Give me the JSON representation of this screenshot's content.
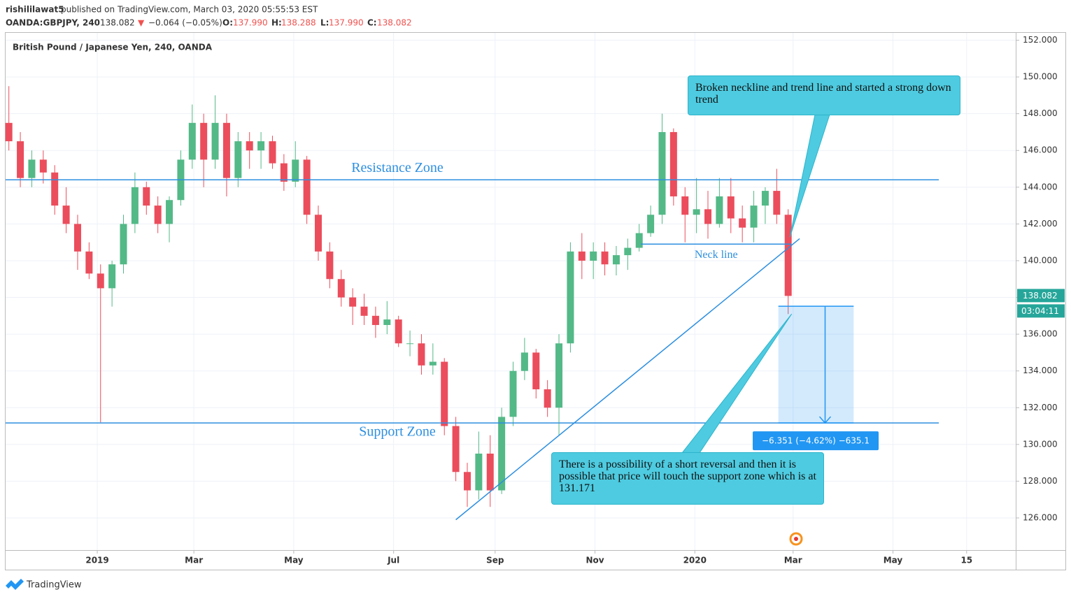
{
  "header": {
    "publisher": "rishililawat5",
    "published": "published on TradingView.com, March 03, 2020 05:55:53 EST",
    "symbol": "OANDA:GBPJPY, 240",
    "price": "138.082",
    "arrow": "▼",
    "change": "−0.064 (−0.05%)",
    "o_label": "O:",
    "o": "137.990",
    "h_label": "H:",
    "h": "138.288",
    "l_label": "L:",
    "l": "137.990",
    "c_label": "C:",
    "c": "138.082"
  },
  "chart_data": {
    "type": "candlestick",
    "title": "British Pound / Japanese Yen, 240, OANDA",
    "x": [
      "2018-11-08",
      "2018-11-15",
      "2018-11-22",
      "2018-11-29",
      "2018-12-06",
      "2018-12-13",
      "2018-12-20",
      "2018-12-27",
      "2019-01-03",
      "2019-01-10",
      "2019-01-17",
      "2019-01-24",
      "2019-01-31",
      "2019-02-07",
      "2019-02-14",
      "2019-02-21",
      "2019-02-28",
      "2019-03-07",
      "2019-03-14",
      "2019-03-21",
      "2019-03-28",
      "2019-04-04",
      "2019-04-11",
      "2019-04-18",
      "2019-04-25",
      "2019-05-02",
      "2019-05-09",
      "2019-05-16",
      "2019-05-23",
      "2019-05-30",
      "2019-06-06",
      "2019-06-13",
      "2019-06-20",
      "2019-06-27",
      "2019-07-04",
      "2019-07-11",
      "2019-07-18",
      "2019-07-25",
      "2019-08-01",
      "2019-08-08",
      "2019-08-15",
      "2019-08-22",
      "2019-08-29",
      "2019-09-05",
      "2019-09-12",
      "2019-09-19",
      "2019-09-26",
      "2019-10-03",
      "2019-10-10",
      "2019-10-17",
      "2019-10-24",
      "2019-10-31",
      "2019-11-07",
      "2019-11-14",
      "2019-11-21",
      "2019-11-28",
      "2019-12-05",
      "2019-12-12",
      "2019-12-19",
      "2019-12-26",
      "2020-01-02",
      "2020-01-09",
      "2020-01-16",
      "2020-01-23",
      "2020-01-30",
      "2020-02-06",
      "2020-02-13",
      "2020-02-20",
      "2020-02-27"
    ],
    "open": [
      147.5,
      146.5,
      144.5,
      145.5,
      144.8,
      143,
      142,
      140.5,
      139.3,
      138.5,
      139.8,
      142,
      144,
      143,
      142,
      143.3,
      145.5,
      147.5,
      145.5,
      147.5,
      144.5,
      146.5,
      146,
      146.5,
      145.3,
      144.3,
      145.5,
      142.5,
      140.5,
      139,
      138,
      137.5,
      137,
      136.5,
      136.8,
      135.5,
      135.5,
      134.3,
      134.5,
      131,
      128.5,
      127.5,
      129.5,
      127.5,
      131.5,
      134,
      135,
      133,
      132,
      135.5,
      140.5,
      140,
      140.5,
      139.8,
      140.3,
      140.7,
      141.5,
      142.5,
      147,
      143.5,
      142.5,
      142.8,
      142,
      143.5,
      142.3,
      141.8,
      143,
      143.8,
      142.5
    ],
    "high": [
      149.5,
      147,
      146,
      146,
      145.2,
      144,
      142.5,
      141,
      139.8,
      140,
      142.5,
      144.8,
      144.3,
      143.5,
      143.5,
      146,
      148.5,
      148,
      149,
      148,
      147,
      147,
      147,
      146.8,
      145.8,
      146.5,
      145.7,
      143,
      141,
      139.5,
      138.5,
      138.2,
      137.5,
      137.8,
      137,
      136.2,
      136,
      135.5,
      134.7,
      131.5,
      129,
      130.7,
      130.5,
      132,
      134.5,
      135.8,
      135.2,
      133.5,
      136,
      141,
      141.5,
      141,
      141,
      140.8,
      141.2,
      142,
      143,
      148,
      147.2,
      144,
      144.5,
      143.8,
      144.5,
      144.5,
      143,
      143.8,
      144,
      145,
      142.8
    ],
    "low": [
      146,
      144,
      144,
      144.2,
      142.5,
      141.5,
      139.5,
      139,
      131.2,
      137.5,
      139.3,
      141.5,
      142.5,
      141.5,
      141,
      143,
      145,
      144,
      145,
      143.5,
      144,
      145,
      145,
      145,
      143.8,
      144,
      142,
      140,
      138.5,
      137.5,
      136.5,
      136.5,
      135.8,
      136,
      135.3,
      134.8,
      133.8,
      133.8,
      130.5,
      128,
      126.6,
      127,
      126.6,
      127.3,
      131,
      133.5,
      132.5,
      131.5,
      130.5,
      135,
      139,
      139,
      139.2,
      139.2,
      139.5,
      140.5,
      141.3,
      142,
      143,
      141,
      141.5,
      141.2,
      141.8,
      141.5,
      141,
      141,
      142,
      142,
      137.1
    ],
    "close": [
      146.5,
      144.5,
      145.5,
      144.8,
      143,
      142,
      140.5,
      139.3,
      138.5,
      139.8,
      142,
      144,
      143,
      142,
      143.3,
      145.5,
      147.5,
      145.5,
      147.5,
      144.5,
      146.5,
      146,
      146.5,
      145.3,
      144.3,
      145.5,
      142.5,
      140.5,
      139,
      138,
      137.5,
      137,
      136.5,
      136.8,
      135.5,
      135.5,
      134.3,
      134.5,
      131,
      128.5,
      127.5,
      129.5,
      127.5,
      131.5,
      134,
      135,
      133,
      132,
      135.5,
      140.5,
      140,
      140.5,
      139.8,
      140.3,
      140.7,
      141.5,
      142.5,
      147,
      143.5,
      142.5,
      142.8,
      142,
      143.5,
      142.3,
      141.8,
      143,
      143.8,
      142.5,
      138.082
    ],
    "up_color": "#53b987",
    "down_color": "#eb4d5c",
    "xlim": [
      "2018-11-06",
      "2020-07-15"
    ],
    "xticks": [
      {
        "value": "2019-01-01",
        "label": "2019"
      },
      {
        "value": "2019-03-01",
        "label": "Mar"
      },
      {
        "value": "2019-05-01",
        "label": "May"
      },
      {
        "value": "2019-07-01",
        "label": "Jul"
      },
      {
        "value": "2019-09-01",
        "label": "Sep"
      },
      {
        "value": "2019-11-01",
        "label": "Nov"
      },
      {
        "value": "2020-01-01",
        "label": "2020"
      },
      {
        "value": "2020-03-01",
        "label": "Mar"
      },
      {
        "value": "2020-05-01",
        "label": "May"
      },
      {
        "value": "2020-06-15",
        "label": "15"
      }
    ],
    "ylim": [
      124.25,
      152.4
    ],
    "yticks": [
      {
        "value": 126,
        "label": "126.000"
      },
      {
        "value": 128,
        "label": "128.000"
      },
      {
        "value": 130,
        "label": "130.000"
      },
      {
        "value": 132,
        "label": "132.000"
      },
      {
        "value": 134,
        "label": "134.000"
      },
      {
        "value": 136,
        "label": "136.000"
      },
      {
        "value": 138,
        "label": "138.000"
      },
      {
        "value": 140,
        "label": "140.000"
      },
      {
        "value": 142,
        "label": "142.000"
      },
      {
        "value": 144,
        "label": "144.000"
      },
      {
        "value": 146,
        "label": "146.000"
      },
      {
        "value": 148,
        "label": "148.000"
      },
      {
        "value": 150,
        "label": "150.000"
      },
      {
        "value": 152,
        "label": "152.000"
      }
    ],
    "grid": true,
    "last_price": {
      "value": 138.082,
      "label": "138.082"
    },
    "countdown": "03:04:11",
    "resistance": {
      "label": "Resistance Zone",
      "value": 144.4,
      "x": [
        "2018-11-06",
        "2020-05-29"
      ],
      "color": "#2d8fe0"
    },
    "support": {
      "label": "Support Zone",
      "value": 131.171,
      "x": [
        "2018-11-06",
        "2020-05-29"
      ],
      "color": "#2d8fe0"
    },
    "neckline": {
      "label": "Neck line",
      "value": 140.9,
      "x": [
        "2019-11-29",
        "2020-02-29"
      ],
      "color": "#2d8fe0"
    },
    "trendline": {
      "x": [
        "2019-08-08",
        "2020-03-05"
      ],
      "y": [
        125.9,
        141.2
      ],
      "color": "#2d8fe0"
    },
    "measure": {
      "x": [
        "2020-02-21",
        "2020-04-07"
      ],
      "y": [
        137.522,
        131.171
      ],
      "label": "−6.351 (−4.62%) −635.1"
    },
    "callouts": [
      "Broken neckline and trend line and started a strong down trend",
      "There is a possibility of a short reversal and then it is possible that price will touch the support zone which is at 131.171"
    ]
  },
  "footer": {
    "brand": "TradingView"
  }
}
